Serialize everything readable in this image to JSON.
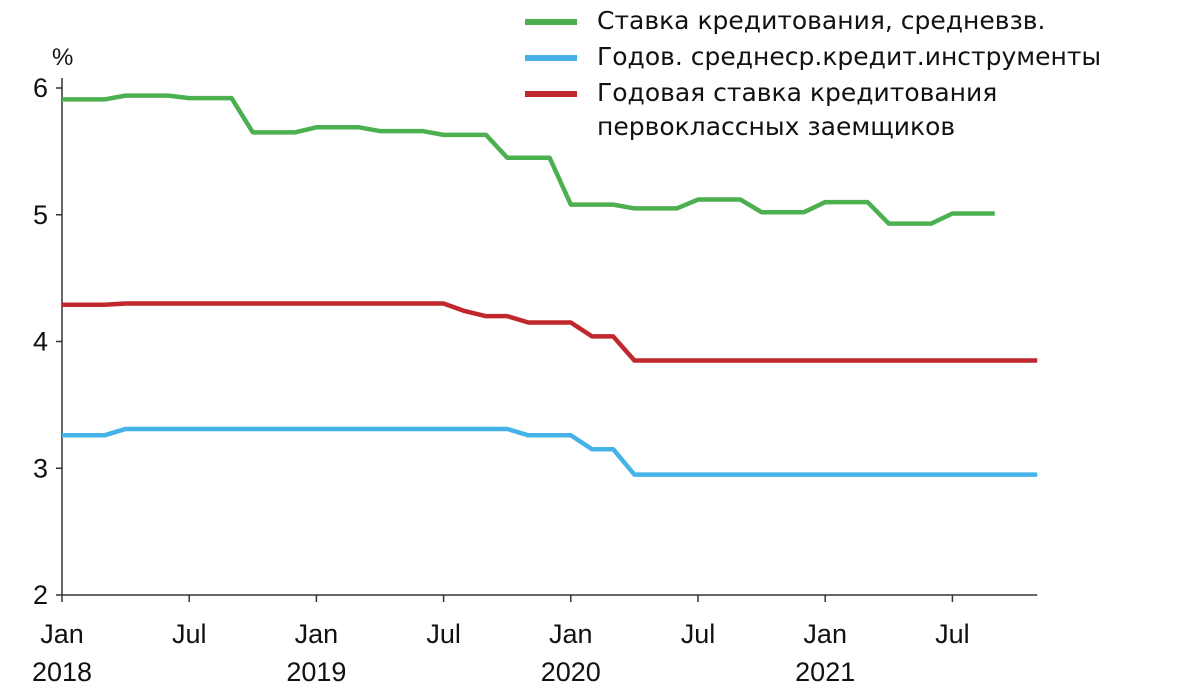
{
  "chart_data": {
    "type": "line",
    "ylabel": "%",
    "categories": [
      "Jan 2018",
      null,
      null,
      null,
      null,
      null,
      "Jul",
      null,
      null,
      null,
      null,
      null,
      "Jan 2019",
      null,
      null,
      null,
      null,
      null,
      "Jul",
      null,
      null,
      null,
      null,
      null,
      "Jan 2020",
      null,
      null,
      null,
      null,
      null,
      "Jul",
      null,
      null,
      null,
      null,
      null,
      "Jan 2021",
      null,
      null,
      null,
      null,
      null,
      "Jul",
      null,
      null,
      null,
      null
    ],
    "series": [
      {
        "name": "Ставка кредитования, средневзв.",
        "color": "#4caf50",
        "values": [
          5.91,
          5.91,
          5.91,
          5.94,
          5.94,
          5.94,
          5.92,
          5.92,
          5.92,
          5.65,
          5.65,
          5.65,
          5.69,
          5.69,
          5.69,
          5.66,
          5.66,
          5.66,
          5.63,
          5.63,
          5.63,
          5.45,
          5.45,
          5.45,
          5.08,
          5.08,
          5.08,
          5.05,
          5.05,
          5.05,
          5.12,
          5.12,
          5.12,
          5.02,
          5.02,
          5.02,
          5.1,
          5.1,
          5.1,
          4.93,
          4.93,
          4.93,
          5.01,
          5.01,
          5.01,
          null,
          null
        ]
      },
      {
        "name": "Годов. среднеср.кредит.инструменты",
        "color": "#45b3e7",
        "values": [
          3.26,
          3.26,
          3.26,
          3.31,
          3.31,
          3.31,
          3.31,
          3.31,
          3.31,
          3.31,
          3.31,
          3.31,
          3.31,
          3.31,
          3.31,
          3.31,
          3.31,
          3.31,
          3.31,
          3.31,
          3.31,
          3.31,
          3.26,
          3.26,
          3.26,
          3.15,
          3.15,
          2.95,
          2.95,
          2.95,
          2.95,
          2.95,
          2.95,
          2.95,
          2.95,
          2.95,
          2.95,
          2.95,
          2.95,
          2.95,
          2.95,
          2.95,
          2.95,
          2.95,
          2.95,
          2.95,
          2.95
        ]
      },
      {
        "name": "Годовая ставка кредитования первоклассных заемщиков",
        "color": "#c0282d",
        "values": [
          4.29,
          4.29,
          4.29,
          4.3,
          4.3,
          4.3,
          4.3,
          4.3,
          4.3,
          4.3,
          4.3,
          4.3,
          4.3,
          4.3,
          4.3,
          4.3,
          4.3,
          4.3,
          4.3,
          4.24,
          4.2,
          4.2,
          4.15,
          4.15,
          4.15,
          4.04,
          4.04,
          3.85,
          3.85,
          3.85,
          3.85,
          3.85,
          3.85,
          3.85,
          3.85,
          3.85,
          3.85,
          3.85,
          3.85,
          3.85,
          3.85,
          3.85,
          3.85,
          3.85,
          3.85,
          3.85,
          3.85
        ]
      }
    ],
    "ylim": [
      2,
      6
    ],
    "yticks": [
      2,
      3,
      4,
      5,
      6
    ],
    "legend": "top-right"
  }
}
